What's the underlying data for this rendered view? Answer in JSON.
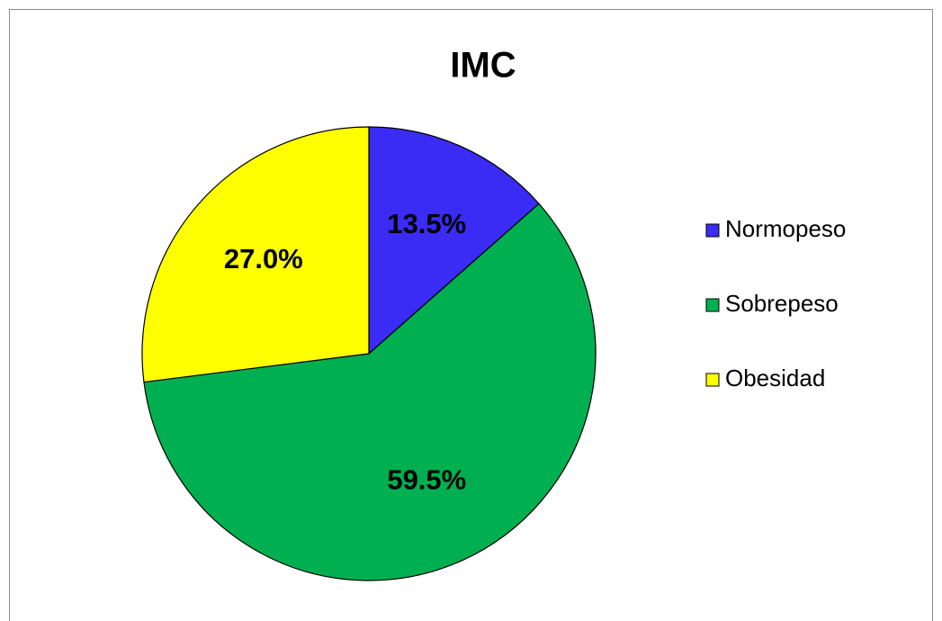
{
  "chart_data": {
    "type": "pie",
    "title": "IMC",
    "categories": [
      "Normopeso",
      "Sobrepeso",
      "Obesidad"
    ],
    "values": [
      13.5,
      59.5,
      27.0
    ],
    "value_labels": [
      "13.5%",
      "59.5%",
      "27.0%"
    ],
    "colors": [
      "#3a2bf5",
      "#00b050",
      "#ffff00"
    ],
    "legend": "right"
  }
}
